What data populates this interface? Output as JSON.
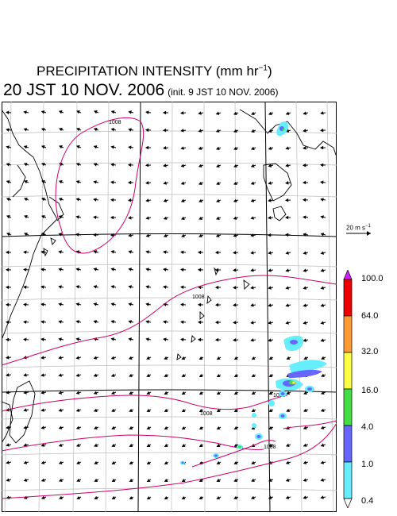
{
  "title": {
    "line1_main": "PRECIPITATION INTENSITY (mm hr",
    "line1_sup": "−1",
    "line1_close": ")",
    "line2_main": "20 JST 10 NOV. 2006",
    "line2_init": "(init. 9 JST 10 NOV. 2006)"
  },
  "isobar_labels": [
    "1008",
    "1008",
    "1008",
    "1008",
    "1008"
  ],
  "reference_vector": {
    "label_main": "20 m s",
    "label_sup": "−1"
  },
  "colorbar": {
    "levels": [
      "100.0",
      "64.0",
      "32.0",
      "16.0",
      "4.0",
      "1.0",
      "0.4"
    ],
    "colors": [
      "#cc22ff",
      "#ee0000",
      "#ff9933",
      "#ffff44",
      "#44dd44",
      "#6666ff",
      "#66eeff",
      "#ffffff"
    ]
  },
  "colors": {
    "isobar": "#cc0066",
    "coast": "#000000",
    "grid": "#bbbbbb",
    "frame": "#000000"
  }
}
